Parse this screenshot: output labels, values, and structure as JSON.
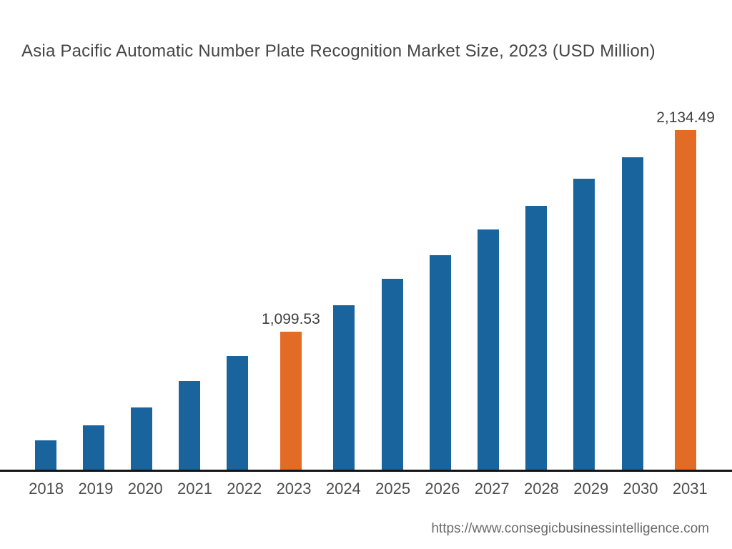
{
  "page": {
    "footer_url": "https://www.consegicbusinessintelligence.com"
  },
  "colors": {
    "bar_default": "#1A649E",
    "bar_highlight": "#E26B25",
    "axis_line": "#141414",
    "title_text": "#454545",
    "value_label_text": "#3F3F3F",
    "tick_text": "#4D4D4D",
    "footer_text": "#6B6B6B",
    "background": "#FFFFFF"
  },
  "chart_data": {
    "type": "bar",
    "title": "Asia Pacific Automatic Number Plate Recognition Market Size, 2023 (USD Million)",
    "unit": "USD Million",
    "categories": [
      "2018",
      "2019",
      "2020",
      "2021",
      "2022",
      "2023",
      "2024",
      "2025",
      "2026",
      "2027",
      "2028",
      "2029",
      "2030",
      "2031"
    ],
    "values": [
      545,
      622,
      713,
      849,
      977,
      1099.53,
      1235,
      1372,
      1493,
      1625,
      1746,
      1884,
      1994,
      2134.49
    ],
    "highlighted_categories": [
      "2023",
      "2031"
    ],
    "data_labels": {
      "2023": "1,099.53",
      "2031": "2,134.49"
    },
    "xlabel": "",
    "ylabel": "",
    "ylim": [
      390,
      2250
    ],
    "grid": false,
    "legend": false
  }
}
